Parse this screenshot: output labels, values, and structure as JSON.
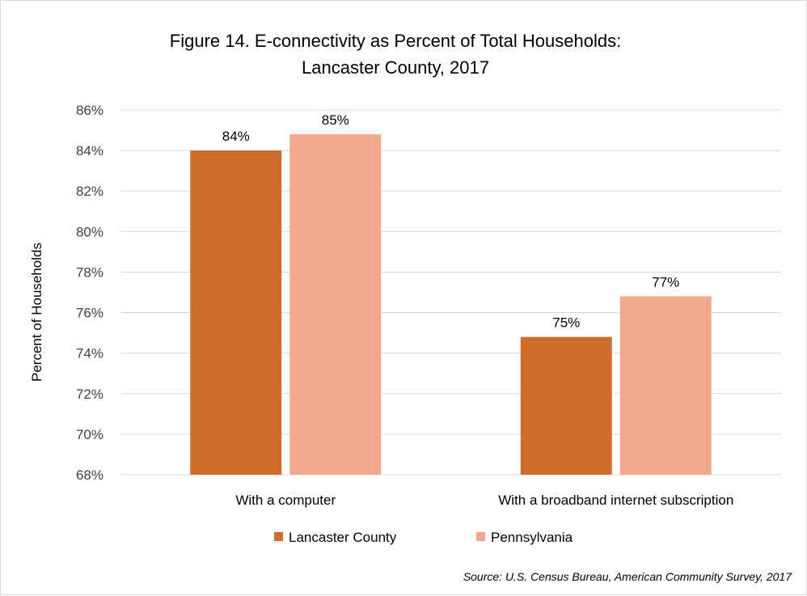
{
  "chart_data": {
    "type": "bar",
    "title": "Figure 14. E-connectivity as Percent of Total Households:",
    "subtitle": "Lancaster County, 2017",
    "xlabel": "",
    "ylabel": "Percent of Households",
    "ylim": [
      68,
      86
    ],
    "yticks": [
      "68%",
      "70%",
      "72%",
      "74%",
      "76%",
      "78%",
      "80%",
      "82%",
      "84%",
      "86%"
    ],
    "categories": [
      "With a computer",
      "With a broadband internet subscription"
    ],
    "series": [
      {
        "name": "Lancaster County",
        "color": "#d06d2c",
        "values": [
          84.0,
          74.8
        ],
        "labels": [
          "84%",
          "75%"
        ]
      },
      {
        "name": "Pennsylvania",
        "color": "#f2a88a",
        "values": [
          84.8,
          76.8
        ],
        "labels": [
          "85%",
          "77%"
        ]
      }
    ],
    "grid": true,
    "legend_position": "bottom",
    "source": "Source: U.S. Census Bureau, American Community Survey, 2017"
  }
}
